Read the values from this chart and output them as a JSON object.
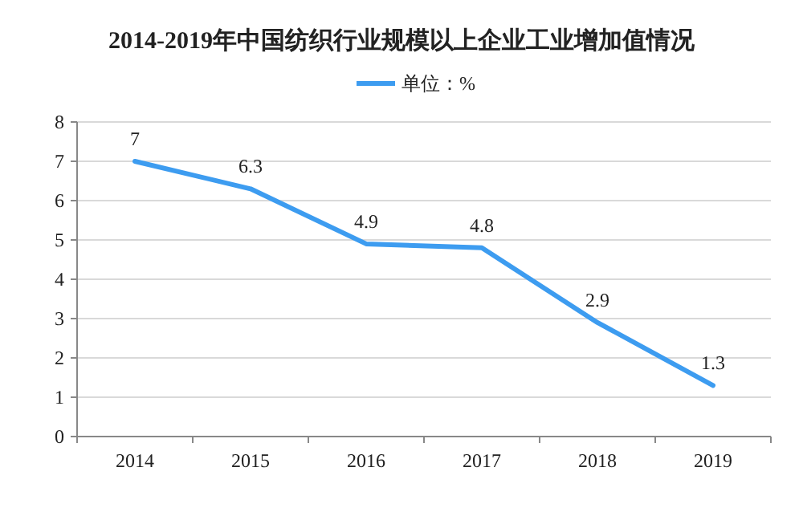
{
  "chart_data": {
    "type": "line",
    "title": "2014-2019年中国纺织行业规模以上企业工业增加值情况",
    "categories": [
      "2014",
      "2015",
      "2016",
      "2017",
      "2018",
      "2019"
    ],
    "series": [
      {
        "name": "单位：%",
        "color": "#3d9cf0",
        "values": [
          7,
          6.3,
          4.9,
          4.8,
          2.9,
          1.3
        ]
      }
    ],
    "ylim": [
      0,
      8
    ],
    "yticks": [
      0,
      1,
      2,
      3,
      4,
      5,
      6,
      7,
      8
    ],
    "grid": "y",
    "legend": "top",
    "data_labels": true,
    "marker": "none",
    "line_style": "solid"
  }
}
